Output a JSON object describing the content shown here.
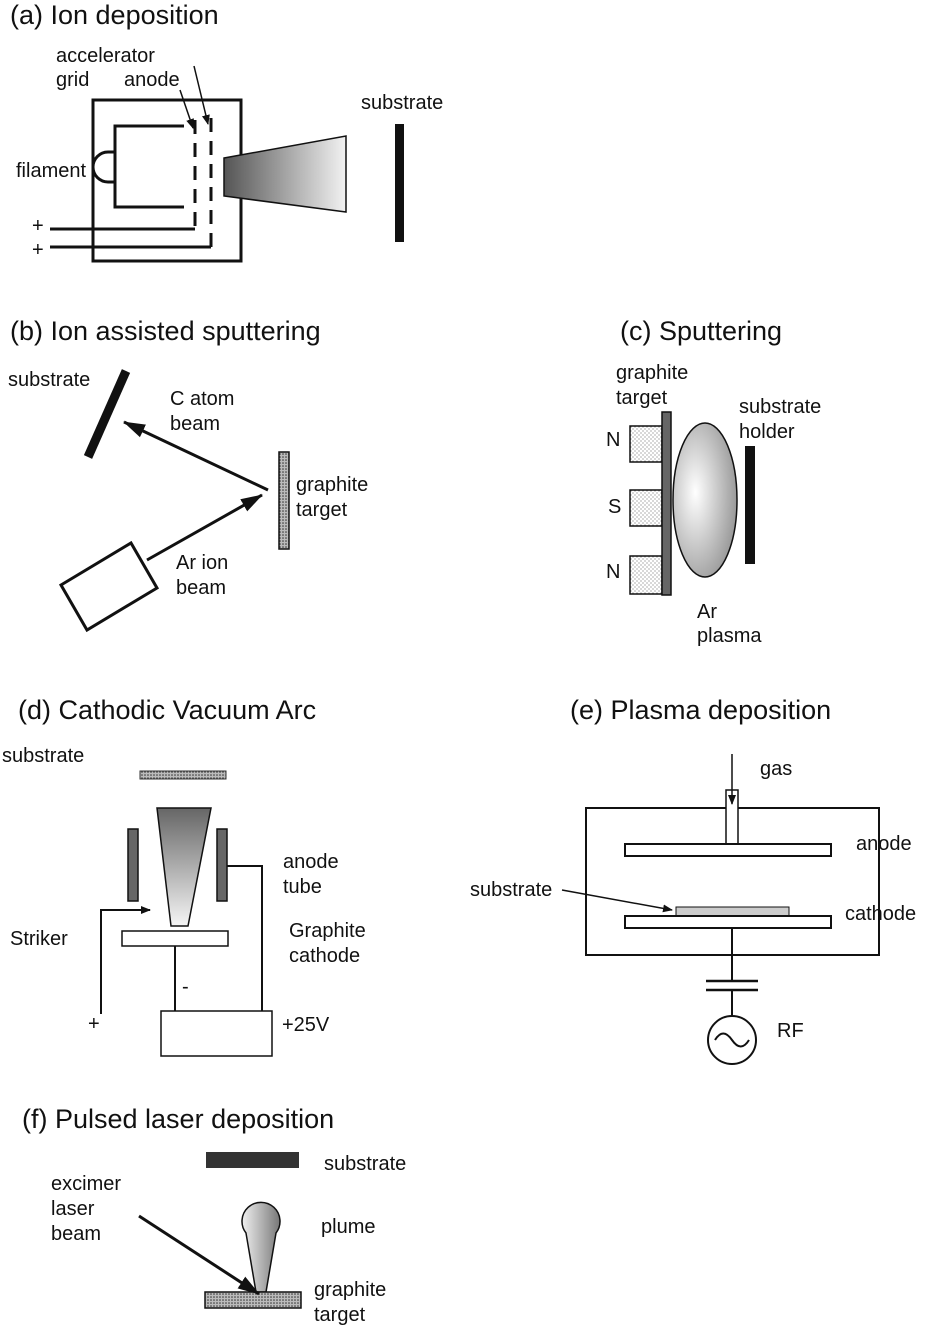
{
  "panels": {
    "a": {
      "title": "(a) Ion deposition",
      "accelerator": "accelerator",
      "grid": "grid",
      "anode": "anode",
      "substrate": "substrate",
      "filament": "filament",
      "plus1": "+",
      "plus2": "+"
    },
    "b": {
      "title": "(b) Ion assisted sputtering",
      "substrate": "substrate",
      "c_atom": "C atom",
      "beam1": "beam",
      "graphite": "graphite",
      "target": "target",
      "ar_ion": "Ar ion",
      "beam2": "beam"
    },
    "c": {
      "title": "(c) Sputtering",
      "graphite": "graphite",
      "target": "target",
      "substrate": "substrate",
      "holder": "holder",
      "n1": "N",
      "s": "S",
      "n2": "N",
      "ar": "Ar",
      "plasma": "plasma"
    },
    "d": {
      "title": "(d) Cathodic Vacuum Arc",
      "substrate": "substrate",
      "anode": "anode",
      "tube": "tube",
      "striker": "Striker",
      "graphite": "Graphite",
      "cathode": "cathode",
      "minus": "-",
      "plus": "+",
      "voltage": "+25V"
    },
    "e": {
      "title": "(e) Plasma deposition",
      "gas": "gas",
      "anode": "anode",
      "substrate": "substrate",
      "cathode": "cathode",
      "rf": "RF"
    },
    "f": {
      "title": "(f) Pulsed laser deposition",
      "substrate": "substrate",
      "excimer": "excimer",
      "laser": "laser",
      "beam": "beam",
      "plume": "plume",
      "graphite": "graphite",
      "target": "target"
    }
  },
  "icons": [
    "arrow-icon",
    "ac-source-icon",
    "capacitor-icon",
    "magnet-icon"
  ],
  "colors": {
    "ink": "#111111",
    "beam_dark": "#555555",
    "substrate_dark": "#333333"
  }
}
